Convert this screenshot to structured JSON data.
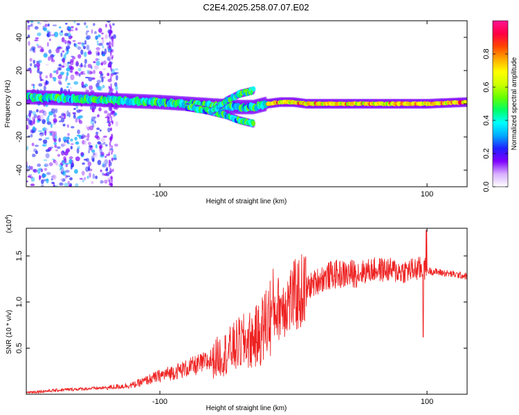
{
  "title": "C2E4.2025.258.07.07.E02",
  "chart_data": [
    {
      "type": "heatmap",
      "name": "spectrogram",
      "xlabel": "Height of straight line (km)",
      "ylabel": "Frequency (Hz)",
      "xlim": [
        -200,
        130
      ],
      "ylim": [
        -50,
        50
      ],
      "xticks": [
        -100,
        100
      ],
      "xtick_labels": [
        "-100",
        "100"
      ],
      "yticks": [
        -40,
        -20,
        0,
        20,
        40
      ],
      "ytick_labels": [
        "-40",
        "-20",
        "0",
        "20",
        "40"
      ],
      "colorbar": {
        "label": "Normalized spectral amplitude",
        "range": [
          0,
          1
        ],
        "ticks": [
          0.0,
          0.2,
          0.4,
          0.6,
          0.8
        ],
        "tick_labels": [
          "0.0",
          "0.2",
          "0.4",
          "0.6",
          "0.8"
        ],
        "colors": [
          "#ffffff",
          "#d8b0ff",
          "#7f00ff",
          "#2020ff",
          "#00aaff",
          "#00ffff",
          "#00ff66",
          "#66ff00",
          "#ccff00",
          "#ffff00",
          "#ffaa00",
          "#ff4400",
          "#ff0044",
          "#ff1493"
        ]
      },
      "ridges": [
        {
          "name": "main ridge",
          "x": [
            -200,
            -160,
            -130,
            -100,
            -80,
            -60,
            -40,
            -30,
            -20,
            -10,
            0,
            10,
            40,
            80,
            100,
            130
          ],
          "y": [
            4,
            3,
            2,
            1,
            0,
            -1,
            -2,
            -2,
            0,
            1,
            1,
            0,
            0,
            0,
            0,
            1
          ]
        },
        {
          "name": "descending branch",
          "x": [
            -80,
            -65,
            -50,
            -40,
            -30
          ],
          "y": [
            -2,
            -4,
            -7,
            -10,
            -12
          ]
        },
        {
          "name": "ascending branch",
          "x": [
            -60,
            -50,
            -40,
            -30
          ],
          "y": [
            -4,
            2,
            6,
            8
          ]
        }
      ]
    },
    {
      "type": "line",
      "name": "snr",
      "xlabel": "Height of straight line (km)",
      "ylabel": "SNR (10 * v/v)",
      "scale_label": "(x10",
      "scale_exponent": "4",
      "xlim": [
        -200,
        130
      ],
      "ylim": [
        0,
        18000
      ],
      "xticks": [
        -100,
        100
      ],
      "xtick_labels": [
        "-100",
        "100"
      ],
      "yticks": [
        5000,
        10000,
        15000
      ],
      "ytick_labels": [
        "0.5",
        "1.0",
        "1.5"
      ],
      "color": "#ee2222",
      "series": [
        {
          "name": "SNR",
          "x": [
            -200,
            -170,
            -140,
            -120,
            -100,
            -80,
            -65,
            -50,
            -40,
            -30,
            -25,
            -20,
            -15,
            -10,
            -5,
            0,
            5,
            10,
            20,
            30,
            40,
            50,
            60,
            70,
            80,
            90,
            95,
            100,
            110,
            120,
            130
          ],
          "y": [
            200,
            500,
            700,
            1000,
            2000,
            2800,
            3500,
            4500,
            5500,
            6000,
            6500,
            8000,
            9000,
            9500,
            10000,
            10500,
            11000,
            11500,
            12500,
            13000,
            13000,
            13200,
            13500,
            13500,
            13300,
            13500,
            13600,
            13400,
            13200,
            13000,
            12800
          ]
        }
      ]
    }
  ]
}
